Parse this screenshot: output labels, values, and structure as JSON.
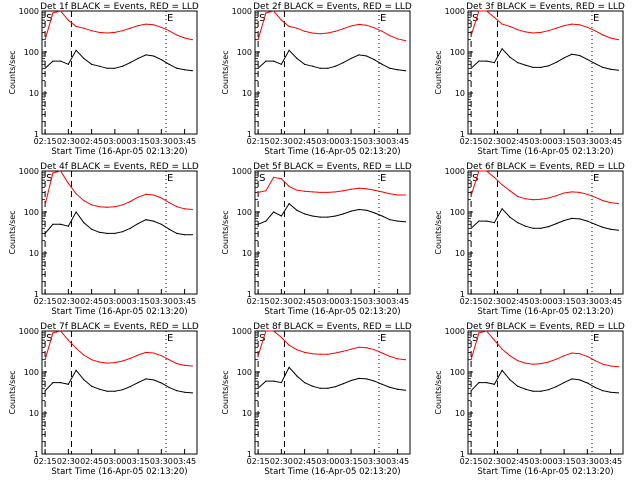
{
  "figure": {
    "xlabel": "Start Time (16-Apr-05 02:13:20)",
    "ylabel": "Counts/sec",
    "ytick_labels": [
      "1",
      "10",
      "100",
      "1000"
    ],
    "xtick_labels": [
      "02:15",
      "02:30",
      "02:45",
      "03:00",
      "03:15",
      "03:30",
      "03:45"
    ],
    "marker_s": "S",
    "marker_e": "E",
    "colors": {
      "events": "#000000",
      "lld": "#ff0000",
      "axes": "#000000"
    }
  },
  "chart_data": [
    {
      "type": "line",
      "title": "Det 1f BLACK = Events, RED = LLD",
      "ylim": [
        1,
        1000
      ],
      "yscale": "log",
      "x": [
        "02:15",
        "02:20",
        "02:25",
        "02:30",
        "02:35",
        "02:40",
        "02:45",
        "02:50",
        "02:55",
        "03:00",
        "03:05",
        "03:10",
        "03:15",
        "03:20",
        "03:25",
        "03:30",
        "03:35",
        "03:40",
        "03:45",
        "03:50"
      ],
      "series": [
        {
          "values": [
            200,
            900,
            1200,
            600,
            420,
            380,
            330,
            300,
            290,
            300,
            330,
            380,
            440,
            480,
            460,
            400,
            330,
            260,
            220,
            200
          ]
        },
        {
          "values": [
            40,
            60,
            60,
            50,
            110,
            70,
            50,
            45,
            40,
            40,
            45,
            55,
            70,
            85,
            80,
            65,
            50,
            40,
            37,
            35
          ]
        }
      ]
    },
    {
      "type": "line",
      "title": "Det 2f BLACK = Events, RED = LLD",
      "ylim": [
        1,
        1000
      ],
      "yscale": "log",
      "x": [
        "02:15",
        "02:20",
        "02:25",
        "02:30",
        "02:35",
        "02:40",
        "02:45",
        "02:50",
        "02:55",
        "03:00",
        "03:05",
        "03:10",
        "03:15",
        "03:20",
        "03:25",
        "03:30",
        "03:35",
        "03:40",
        "03:45",
        "03:50"
      ],
      "series": [
        {
          "values": [
            200,
            900,
            1100,
            600,
            420,
            380,
            320,
            290,
            280,
            290,
            320,
            370,
            430,
            470,
            450,
            390,
            320,
            250,
            210,
            190
          ]
        },
        {
          "values": [
            40,
            60,
            60,
            50,
            110,
            70,
            50,
            45,
            40,
            40,
            45,
            55,
            70,
            85,
            80,
            65,
            50,
            40,
            37,
            35
          ]
        }
      ]
    },
    {
      "type": "line",
      "title": "Det 3f BLACK = Events, RED = LLD",
      "ylim": [
        1,
        1000
      ],
      "yscale": "log",
      "x": [
        "02:15",
        "02:20",
        "02:25",
        "02:30",
        "02:35",
        "02:40",
        "02:45",
        "02:50",
        "02:55",
        "03:00",
        "03:05",
        "03:10",
        "03:15",
        "03:20",
        "03:25",
        "03:30",
        "03:35",
        "03:40",
        "03:45",
        "03:50"
      ],
      "series": [
        {
          "values": [
            250,
            1000,
            1300,
            700,
            480,
            420,
            350,
            310,
            290,
            300,
            330,
            380,
            440,
            480,
            460,
            400,
            330,
            260,
            220,
            200
          ]
        },
        {
          "values": [
            40,
            60,
            60,
            55,
            120,
            75,
            55,
            48,
            42,
            42,
            46,
            56,
            72,
            88,
            82,
            66,
            52,
            42,
            38,
            36
          ]
        }
      ]
    },
    {
      "type": "line",
      "title": "Det 4f BLACK = Events, RED = LLD",
      "ylim": [
        1,
        1000
      ],
      "yscale": "log",
      "x": [
        "02:15",
        "02:20",
        "02:25",
        "02:30",
        "02:35",
        "02:40",
        "02:45",
        "02:50",
        "02:55",
        "03:00",
        "03:05",
        "03:10",
        "03:15",
        "03:20",
        "03:25",
        "03:30",
        "03:35",
        "03:40",
        "03:45",
        "03:50"
      ],
      "series": [
        {
          "values": [
            150,
            900,
            1200,
            500,
            280,
            190,
            150,
            135,
            130,
            135,
            150,
            180,
            230,
            270,
            260,
            220,
            170,
            135,
            120,
            115
          ]
        },
        {
          "values": [
            30,
            50,
            50,
            45,
            100,
            55,
            38,
            32,
            30,
            30,
            33,
            40,
            52,
            65,
            60,
            50,
            38,
            30,
            28,
            28
          ]
        }
      ]
    },
    {
      "type": "line",
      "title": "Det 5f BLACK = Events, RED = LLD",
      "ylim": [
        1,
        1000
      ],
      "yscale": "log",
      "x": [
        "02:15",
        "02:20",
        "02:25",
        "02:30",
        "02:35",
        "02:40",
        "02:45",
        "02:50",
        "02:55",
        "03:00",
        "03:05",
        "03:10",
        "03:15",
        "03:20",
        "03:25",
        "03:30",
        "03:35",
        "03:40",
        "03:45",
        "03:50"
      ],
      "series": [
        {
          "values": [
            300,
            330,
            700,
            650,
            420,
            340,
            320,
            310,
            300,
            300,
            310,
            330,
            360,
            380,
            370,
            340,
            310,
            280,
            260,
            260
          ]
        },
        {
          "values": [
            50,
            60,
            100,
            80,
            160,
            110,
            90,
            80,
            75,
            75,
            80,
            90,
            105,
            115,
            110,
            95,
            80,
            65,
            60,
            58
          ]
        }
      ]
    },
    {
      "type": "line",
      "title": "Det 6f BLACK = Events, RED = LLD",
      "ylim": [
        1,
        1000
      ],
      "yscale": "log",
      "x": [
        "02:15",
        "02:20",
        "02:25",
        "02:30",
        "02:35",
        "02:40",
        "02:45",
        "02:50",
        "02:55",
        "03:00",
        "03:05",
        "03:10",
        "03:15",
        "03:20",
        "03:25",
        "03:30",
        "03:35",
        "03:40",
        "03:45",
        "03:50"
      ],
      "series": [
        {
          "values": [
            250,
            1000,
            1300,
            700,
            460,
            330,
            240,
            210,
            200,
            205,
            220,
            250,
            290,
            310,
            300,
            270,
            230,
            190,
            170,
            160
          ]
        },
        {
          "values": [
            40,
            60,
            60,
            55,
            120,
            75,
            55,
            45,
            40,
            40,
            44,
            52,
            62,
            70,
            68,
            60,
            50,
            42,
            38,
            36
          ]
        }
      ]
    },
    {
      "type": "line",
      "title": "Det 7f BLACK = Events, RED = LLD",
      "ylim": [
        1,
        1000
      ],
      "yscale": "log",
      "x": [
        "02:15",
        "02:20",
        "02:25",
        "02:30",
        "02:35",
        "02:40",
        "02:45",
        "02:50",
        "02:55",
        "03:00",
        "03:05",
        "03:10",
        "03:15",
        "03:20",
        "03:25",
        "03:30",
        "03:35",
        "03:40",
        "03:45",
        "03:50"
      ],
      "series": [
        {
          "values": [
            200,
            900,
            1200,
            600,
            380,
            260,
            200,
            175,
            165,
            170,
            185,
            215,
            260,
            300,
            290,
            250,
            200,
            160,
            145,
            140
          ]
        },
        {
          "values": [
            35,
            55,
            55,
            50,
            110,
            65,
            45,
            38,
            34,
            34,
            37,
            44,
            55,
            68,
            64,
            54,
            42,
            35,
            32,
            31
          ]
        }
      ]
    },
    {
      "type": "line",
      "title": "Det 8f BLACK = Events, RED = LLD",
      "ylim": [
        1,
        1000
      ],
      "yscale": "log",
      "x": [
        "02:15",
        "02:20",
        "02:25",
        "02:30",
        "02:35",
        "02:40",
        "02:45",
        "02:50",
        "02:55",
        "03:00",
        "03:05",
        "03:10",
        "03:15",
        "03:20",
        "03:25",
        "03:30",
        "03:35",
        "03:40",
        "03:45",
        "03:50"
      ],
      "series": [
        {
          "values": [
            250,
            1000,
            1300,
            700,
            450,
            350,
            300,
            280,
            270,
            270,
            290,
            320,
            360,
            400,
            390,
            350,
            290,
            240,
            210,
            200
          ]
        },
        {
          "values": [
            40,
            60,
            60,
            55,
            130,
            80,
            55,
            45,
            40,
            40,
            44,
            52,
            62,
            70,
            68,
            60,
            50,
            42,
            38,
            36
          ]
        }
      ]
    },
    {
      "type": "line",
      "title": "Det 9f BLACK = Events, RED = LLD",
      "ylim": [
        1,
        1000
      ],
      "yscale": "log",
      "x": [
        "02:15",
        "02:20",
        "02:25",
        "02:30",
        "02:35",
        "02:40",
        "02:45",
        "02:50",
        "02:55",
        "03:00",
        "03:05",
        "03:10",
        "03:15",
        "03:20",
        "03:25",
        "03:30",
        "03:35",
        "03:40",
        "03:45",
        "03:50"
      ],
      "series": [
        {
          "values": [
            200,
            900,
            1200,
            600,
            360,
            250,
            190,
            165,
            155,
            160,
            175,
            205,
            250,
            290,
            280,
            240,
            190,
            155,
            140,
            135
          ]
        },
        {
          "values": [
            35,
            55,
            55,
            50,
            110,
            65,
            45,
            38,
            34,
            34,
            37,
            44,
            55,
            68,
            64,
            54,
            42,
            35,
            32,
            31
          ]
        }
      ]
    }
  ]
}
